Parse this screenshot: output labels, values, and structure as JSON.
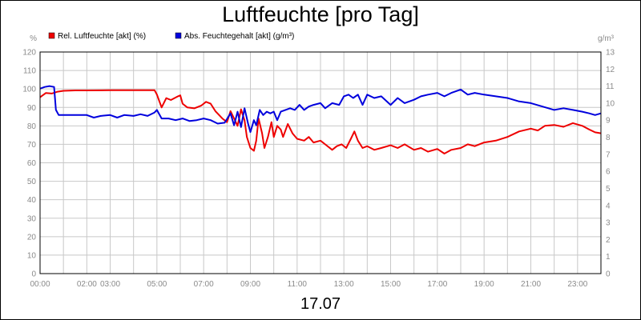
{
  "title": "Luftfeuchte [pro Tag]",
  "date_label": "17.07",
  "chart_data": {
    "type": "line",
    "title": "Luftfeuchte [pro Tag]",
    "xlabel": "17.07",
    "x_range_hours": [
      0,
      24
    ],
    "x_ticks": [
      {
        "h": 0,
        "label": "00:00"
      },
      {
        "h": 2,
        "label": "02:00"
      },
      {
        "h": 3,
        "label": "03:00"
      },
      {
        "h": 5,
        "label": "05:00"
      },
      {
        "h": 7,
        "label": "07:00"
      },
      {
        "h": 9,
        "label": "09:00"
      },
      {
        "h": 11,
        "label": "11:00"
      },
      {
        "h": 13,
        "label": "13:00"
      },
      {
        "h": 15,
        "label": "15:00"
      },
      {
        "h": 17,
        "label": "17:00"
      },
      {
        "h": 19,
        "label": "19:00"
      },
      {
        "h": 21,
        "label": "21:00"
      },
      {
        "h": 23,
        "label": "23:00"
      }
    ],
    "y_left": {
      "unit": "%",
      "min": 0,
      "max": 120,
      "step": 10
    },
    "y_right": {
      "unit": "g/m³",
      "min": 0,
      "max": 13,
      "step": 1
    },
    "grid": true,
    "legend_position": "top-left",
    "series": [
      {
        "name": "Rel. Luftfeuchte [akt] (%)",
        "axis": "left",
        "color": "#ee0000",
        "points": [
          [
            0.0,
            95.5
          ],
          [
            0.25,
            97.8
          ],
          [
            0.5,
            97.5
          ],
          [
            0.75,
            98.5
          ],
          [
            1.0,
            99.0
          ],
          [
            1.5,
            99.2
          ],
          [
            2.0,
            99.2
          ],
          [
            3.0,
            99.3
          ],
          [
            4.0,
            99.3
          ],
          [
            4.9,
            99.3
          ],
          [
            5.0,
            97.0
          ],
          [
            5.2,
            90.0
          ],
          [
            5.4,
            95.0
          ],
          [
            5.6,
            94.0
          ],
          [
            5.9,
            96.0
          ],
          [
            6.0,
            96.5
          ],
          [
            6.1,
            92.0
          ],
          [
            6.3,
            90.0
          ],
          [
            6.6,
            89.5
          ],
          [
            6.9,
            91.0
          ],
          [
            7.1,
            93.0
          ],
          [
            7.3,
            92.0
          ],
          [
            7.5,
            88.0
          ],
          [
            7.8,
            84.0
          ],
          [
            8.0,
            82.0
          ],
          [
            8.15,
            88.0
          ],
          [
            8.3,
            84.0
          ],
          [
            8.45,
            80.0
          ],
          [
            8.6,
            89.0
          ],
          [
            8.75,
            83.0
          ],
          [
            8.85,
            74.0
          ],
          [
            9.0,
            68.0
          ],
          [
            9.15,
            66.5
          ],
          [
            9.25,
            72.0
          ],
          [
            9.35,
            84.0
          ],
          [
            9.5,
            76.0
          ],
          [
            9.6,
            68.0
          ],
          [
            9.75,
            74.0
          ],
          [
            9.9,
            82.0
          ],
          [
            10.0,
            74.0
          ],
          [
            10.15,
            80.0
          ],
          [
            10.3,
            78.0
          ],
          [
            10.4,
            74.0
          ],
          [
            10.6,
            81.0
          ],
          [
            10.8,
            76.0
          ],
          [
            11.0,
            73.0
          ],
          [
            11.3,
            72.0
          ],
          [
            11.5,
            74.0
          ],
          [
            11.7,
            71.0
          ],
          [
            12.0,
            72.0
          ],
          [
            12.2,
            70.0
          ],
          [
            12.5,
            67.0
          ],
          [
            12.7,
            69.0
          ],
          [
            12.9,
            70.0
          ],
          [
            13.1,
            68.0
          ],
          [
            13.3,
            73.0
          ],
          [
            13.45,
            77.0
          ],
          [
            13.6,
            72.0
          ],
          [
            13.8,
            68.0
          ],
          [
            14.0,
            69.0
          ],
          [
            14.3,
            67.0
          ],
          [
            14.6,
            68.0
          ],
          [
            15.0,
            69.5
          ],
          [
            15.3,
            68.0
          ],
          [
            15.6,
            70.0
          ],
          [
            16.0,
            67.0
          ],
          [
            16.3,
            68.0
          ],
          [
            16.6,
            66.0
          ],
          [
            17.0,
            67.5
          ],
          [
            17.3,
            65.0
          ],
          [
            17.6,
            67.0
          ],
          [
            18.0,
            68.0
          ],
          [
            18.3,
            70.0
          ],
          [
            18.6,
            69.0
          ],
          [
            19.0,
            71.0
          ],
          [
            19.5,
            72.0
          ],
          [
            20.0,
            74.0
          ],
          [
            20.5,
            77.0
          ],
          [
            21.0,
            78.5
          ],
          [
            21.3,
            77.5
          ],
          [
            21.6,
            80.0
          ],
          [
            22.0,
            80.5
          ],
          [
            22.4,
            79.5
          ],
          [
            22.8,
            81.5
          ],
          [
            23.2,
            80.0
          ],
          [
            23.5,
            78.0
          ],
          [
            23.75,
            76.5
          ],
          [
            24.0,
            76.0
          ]
        ]
      },
      {
        "name": "Abs. Feuchtegehalt [akt] (g/m³)",
        "axis": "right",
        "color": "#0000dd",
        "points": [
          [
            0.0,
            10.85
          ],
          [
            0.2,
            10.95
          ],
          [
            0.4,
            11.0
          ],
          [
            0.6,
            10.95
          ],
          [
            0.68,
            9.6
          ],
          [
            0.8,
            9.3
          ],
          [
            1.0,
            9.3
          ],
          [
            1.5,
            9.3
          ],
          [
            2.0,
            9.3
          ],
          [
            2.3,
            9.15
          ],
          [
            2.6,
            9.25
          ],
          [
            3.0,
            9.3
          ],
          [
            3.3,
            9.15
          ],
          [
            3.6,
            9.3
          ],
          [
            4.0,
            9.25
          ],
          [
            4.3,
            9.35
          ],
          [
            4.6,
            9.25
          ],
          [
            4.9,
            9.45
          ],
          [
            5.0,
            9.6
          ],
          [
            5.2,
            9.1
          ],
          [
            5.5,
            9.1
          ],
          [
            5.8,
            9.0
          ],
          [
            6.1,
            9.1
          ],
          [
            6.4,
            8.95
          ],
          [
            6.7,
            9.0
          ],
          [
            7.0,
            9.1
          ],
          [
            7.3,
            9.0
          ],
          [
            7.6,
            8.8
          ],
          [
            7.9,
            8.85
          ],
          [
            8.15,
            9.4
          ],
          [
            8.3,
            8.7
          ],
          [
            8.45,
            9.5
          ],
          [
            8.6,
            8.6
          ],
          [
            8.75,
            9.7
          ],
          [
            8.9,
            8.8
          ],
          [
            9.0,
            8.3
          ],
          [
            9.15,
            9.0
          ],
          [
            9.25,
            8.7
          ],
          [
            9.4,
            9.6
          ],
          [
            9.55,
            9.3
          ],
          [
            9.7,
            9.5
          ],
          [
            9.85,
            9.4
          ],
          [
            10.0,
            9.5
          ],
          [
            10.15,
            9.0
          ],
          [
            10.3,
            9.5
          ],
          [
            10.5,
            9.6
          ],
          [
            10.7,
            9.7
          ],
          [
            10.9,
            9.6
          ],
          [
            11.1,
            9.9
          ],
          [
            11.3,
            9.6
          ],
          [
            11.5,
            9.8
          ],
          [
            11.7,
            9.9
          ],
          [
            12.0,
            10.0
          ],
          [
            12.2,
            9.7
          ],
          [
            12.5,
            10.0
          ],
          [
            12.8,
            9.9
          ],
          [
            13.0,
            10.4
          ],
          [
            13.2,
            10.5
          ],
          [
            13.4,
            10.3
          ],
          [
            13.6,
            10.5
          ],
          [
            13.8,
            9.9
          ],
          [
            14.0,
            10.5
          ],
          [
            14.3,
            10.3
          ],
          [
            14.6,
            10.4
          ],
          [
            15.0,
            9.9
          ],
          [
            15.3,
            10.3
          ],
          [
            15.6,
            10.0
          ],
          [
            16.0,
            10.2
          ],
          [
            16.3,
            10.4
          ],
          [
            16.6,
            10.5
          ],
          [
            17.0,
            10.6
          ],
          [
            17.3,
            10.4
          ],
          [
            17.6,
            10.6
          ],
          [
            18.0,
            10.8
          ],
          [
            18.3,
            10.5
          ],
          [
            18.6,
            10.6
          ],
          [
            19.0,
            10.5
          ],
          [
            19.5,
            10.4
          ],
          [
            20.0,
            10.3
          ],
          [
            20.5,
            10.1
          ],
          [
            21.0,
            10.0
          ],
          [
            21.5,
            9.8
          ],
          [
            22.0,
            9.6
          ],
          [
            22.4,
            9.7
          ],
          [
            22.8,
            9.6
          ],
          [
            23.2,
            9.5
          ],
          [
            23.5,
            9.4
          ],
          [
            23.75,
            9.3
          ],
          [
            24.0,
            9.4
          ]
        ]
      }
    ]
  }
}
